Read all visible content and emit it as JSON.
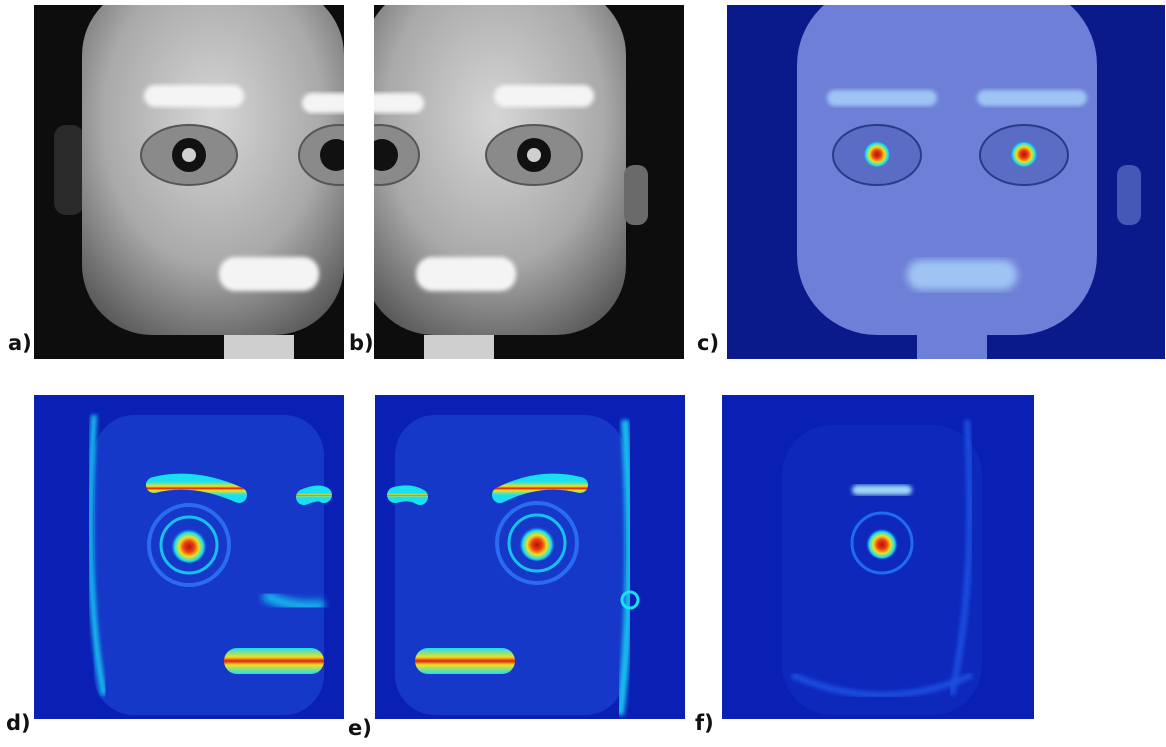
{
  "figure": {
    "panels": [
      {
        "id": "a",
        "label": "a)",
        "content": "robot-face-grayscale-left-view"
      },
      {
        "id": "b",
        "label": "b)",
        "content": "robot-face-grayscale-right-view"
      },
      {
        "id": "c",
        "label": "c)",
        "content": "saliency-overlay-on-robot-face"
      },
      {
        "id": "d",
        "label": "d)",
        "content": "saliency-heatmap-left-view"
      },
      {
        "id": "e",
        "label": "e)",
        "content": "saliency-heatmap-right-view"
      },
      {
        "id": "f",
        "label": "f)",
        "content": "combined-saliency-heatmap"
      }
    ]
  },
  "colors": {
    "heat_background": "#0a1fb4",
    "heat_cold": "#1f6cf0",
    "heat_mid": "#18e0f0",
    "heat_warm": "#f0e020",
    "heat_hot": "#e02010",
    "face_gray": "#bdbdbd",
    "photo_background": "#0d0d0d",
    "label_text": "#111111"
  }
}
